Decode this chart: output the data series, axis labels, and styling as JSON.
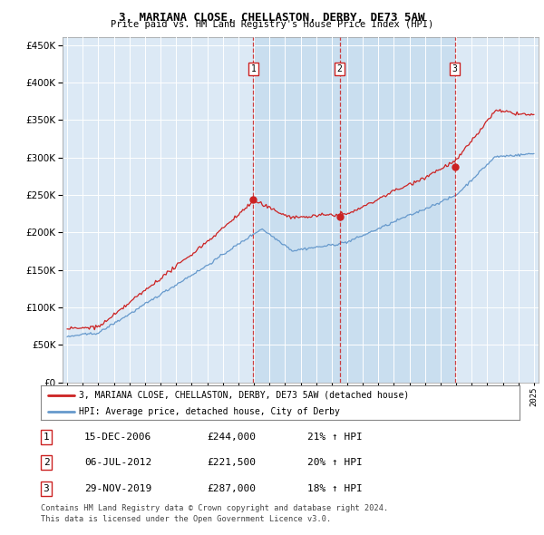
{
  "title": "3, MARIANA CLOSE, CHELLASTON, DERBY, DE73 5AW",
  "subtitle": "Price paid vs. HM Land Registry's House Price Index (HPI)",
  "bg_color": "#dce9f5",
  "highlight_color": "#c8dff0",
  "outer_bg": "#ffffff",
  "red_line_color": "#cc2222",
  "blue_line_color": "#6699cc",
  "grid_color": "#cccccc",
  "ylim": [
    0,
    460000
  ],
  "yticks": [
    0,
    50000,
    100000,
    150000,
    200000,
    250000,
    300000,
    350000,
    400000,
    450000
  ],
  "transaction1": {
    "label": "1",
    "date": "15-DEC-2006",
    "price": 244000,
    "hpi_pct": "21%",
    "x_year": 2006.96
  },
  "transaction2": {
    "label": "2",
    "date": "06-JUL-2012",
    "price": 221500,
    "hpi_pct": "20%",
    "x_year": 2012.51
  },
  "transaction3": {
    "label": "3",
    "date": "29-NOV-2019",
    "price": 287000,
    "hpi_pct": "18%",
    "x_year": 2019.91
  },
  "legend_red": "3, MARIANA CLOSE, CHELLASTON, DERBY, DE73 5AW (detached house)",
  "legend_blue": "HPI: Average price, detached house, City of Derby",
  "footer1": "Contains HM Land Registry data © Crown copyright and database right 2024.",
  "footer2": "This data is licensed under the Open Government Licence v3.0.",
  "xmin": 1995,
  "xmax": 2025
}
